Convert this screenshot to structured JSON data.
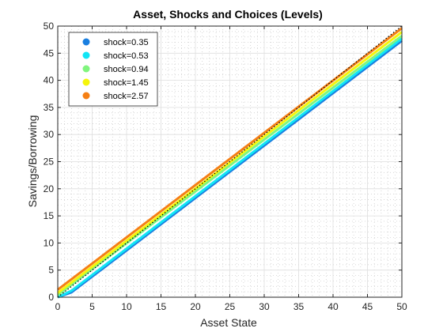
{
  "chart_data": {
    "type": "line",
    "title": "Asset, Shocks and Choices (Levels)",
    "xlabel": "Asset State",
    "ylabel": "Savings/Borrowing",
    "xlim": [
      0,
      50
    ],
    "ylim": [
      0,
      50
    ],
    "xticks": [
      0,
      5,
      10,
      15,
      20,
      25,
      30,
      35,
      40,
      45,
      50
    ],
    "yticks": [
      0,
      5,
      10,
      15,
      20,
      25,
      30,
      35,
      40,
      45,
      50
    ],
    "grid": true,
    "minor_grid": true,
    "legend_position": "top-left",
    "series": [
      {
        "name": "shock=0.35",
        "color": "#1a7fe0",
        "x": [
          0,
          2,
          50
        ],
        "y": [
          0,
          0.9,
          47.3
        ]
      },
      {
        "name": "shock=0.53",
        "color": "#11e5f5",
        "x": [
          0,
          2,
          50
        ],
        "y": [
          0,
          1.2,
          47.7
        ]
      },
      {
        "name": "shock=0.94",
        "color": "#80f57e",
        "x": [
          0,
          50
        ],
        "y": [
          0.4,
          48.2
        ]
      },
      {
        "name": "shock=1.45",
        "color": "#f5f50a",
        "x": [
          0,
          50
        ],
        "y": [
          0.8,
          48.9
        ]
      },
      {
        "name": "shock=2.57",
        "color": "#f57f14",
        "x": [
          0,
          50
        ],
        "y": [
          1.4,
          49.6
        ]
      }
    ],
    "reference_line": {
      "style": "dotted",
      "color": "#000000",
      "x": [
        0,
        50
      ],
      "y": [
        0,
        50
      ]
    }
  }
}
